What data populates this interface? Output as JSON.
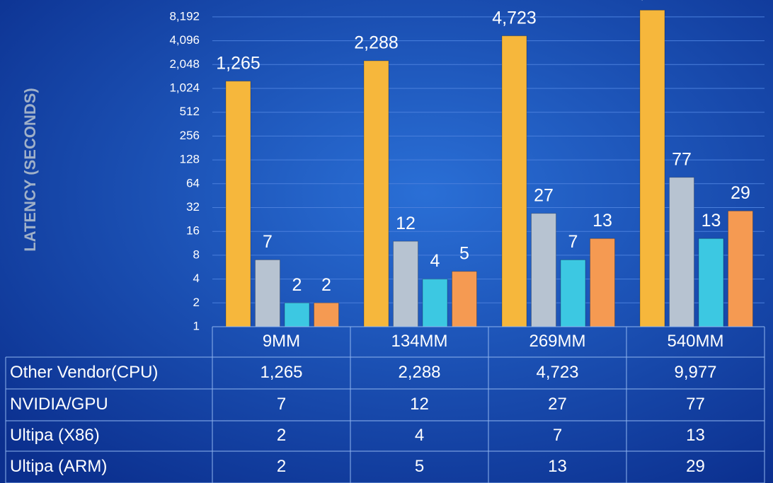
{
  "chart_data": {
    "type": "bar",
    "y_label": "LATENCY (SECONDS)",
    "categories": [
      "9MM",
      "134MM",
      "269MM",
      "540MM"
    ],
    "series": [
      {
        "name": "Other Vendor(CPU)",
        "color": "#f6b73c",
        "values": [
          1265,
          2288,
          4723,
          9977
        ],
        "value_labels": [
          "1,265",
          "2,288",
          "4,723",
          "9,977"
        ]
      },
      {
        "name": "NVIDIA/GPU",
        "color": "#b7c3d1",
        "values": [
          7,
          12,
          27,
          77
        ]
      },
      {
        "name": "Ultipa (X86)",
        "color": "#3cc8e2",
        "values": [
          2,
          4,
          7,
          13
        ]
      },
      {
        "name": "Ultipa (ARM)",
        "color": "#f59a52",
        "values": [
          2,
          5,
          13,
          29
        ]
      }
    ],
    "log_scale": true,
    "ylim": [
      1,
      16384
    ],
    "yticks": [
      1,
      2,
      4,
      8,
      16,
      32,
      64,
      128,
      256,
      512,
      {
        "value": 1024,
        "label": "1,024"
      },
      {
        "value": 2048,
        "label": "2,048"
      },
      {
        "value": 4096,
        "label": "4,096"
      },
      {
        "value": 8192,
        "label": "8,192"
      }
    ],
    "grid": true
  }
}
